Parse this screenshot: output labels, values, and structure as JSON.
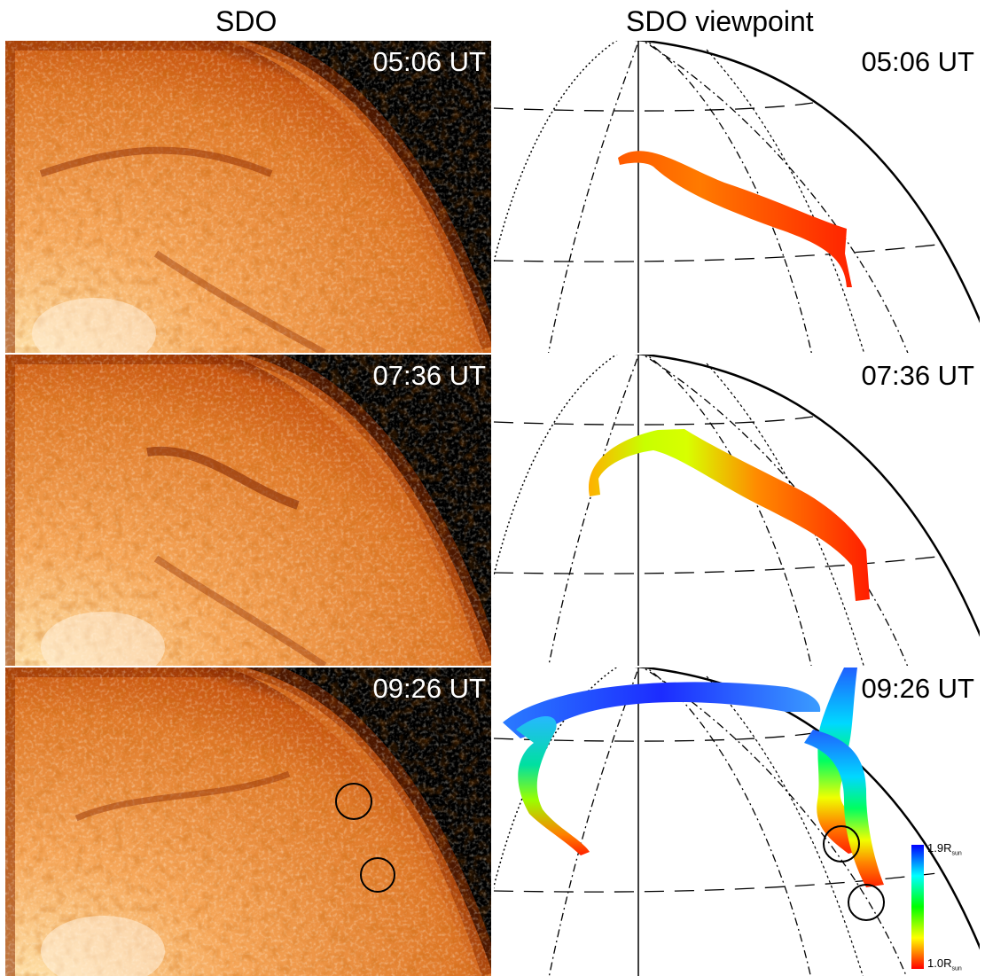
{
  "columns": {
    "left_title": "SDO",
    "right_title": "SDO viewpoint"
  },
  "rows": [
    {
      "sdo_time": "05:06 UT",
      "model_time": "05:06 UT"
    },
    {
      "sdo_time": "07:36 UT",
      "model_time": "07:36 UT"
    },
    {
      "sdo_time": "09:26 UT",
      "model_time": "09:26 UT"
    }
  ],
  "colorbar": {
    "top_label": "1.9R",
    "bottom_label": "1.0R",
    "unit_subscript": "sun",
    "colors": [
      "#0000ff",
      "#00ffff",
      "#00ff00",
      "#ffff00",
      "#ff0000"
    ]
  }
}
